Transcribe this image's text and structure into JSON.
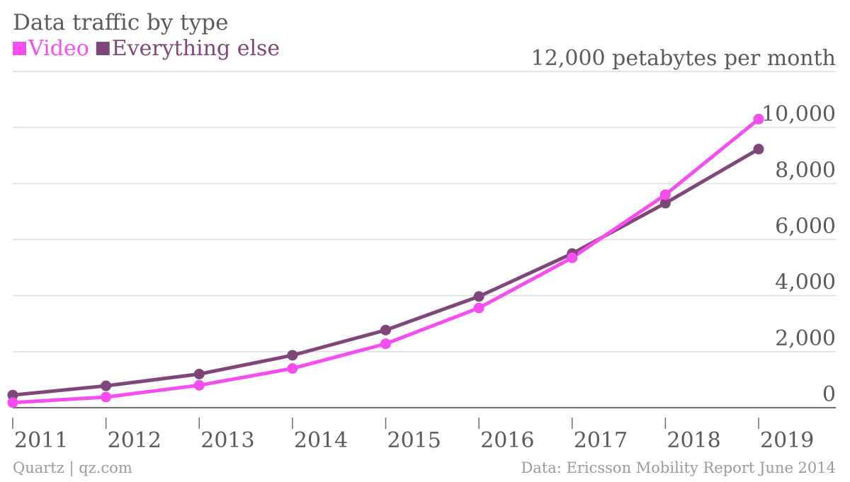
{
  "title": "Data traffic by type",
  "footer": {
    "left": "Quartz | qz.com",
    "right": "Data: Ericsson Mobility Report June 2014"
  },
  "colors": {
    "video": "#f54df0",
    "everything_else": "#7f4679",
    "text": "#5a5a5a",
    "grid": "#dcdcdc",
    "axis": "#6a6a6a"
  },
  "chart_data": {
    "type": "line",
    "title": "Data traffic by type",
    "xlabel": "",
    "ylabel": "",
    "x": [
      "2011",
      "2012",
      "2013",
      "2014",
      "2015",
      "2016",
      "2017",
      "2018",
      "2019"
    ],
    "y_ticks": [
      {
        "value": 0,
        "label": "0"
      },
      {
        "value": 2000,
        "label": "2,000"
      },
      {
        "value": 4000,
        "label": "4,000"
      },
      {
        "value": 6000,
        "label": "6,000"
      },
      {
        "value": 8000,
        "label": "8,000"
      },
      {
        "value": 10000,
        "label": "10,000"
      },
      {
        "value": 12000,
        "label": "12,000 petabytes per month"
      }
    ],
    "ylim": [
      0,
      12000
    ],
    "grid": true,
    "legend_position": "top-left",
    "series": [
      {
        "name": "Video",
        "color": "#f54df0",
        "values": [
          180,
          380,
          800,
          1400,
          2280,
          3560,
          5350,
          7600,
          10300
        ]
      },
      {
        "name": "Everything else",
        "color": "#7f4679",
        "values": [
          450,
          780,
          1200,
          1870,
          2770,
          3970,
          5500,
          7300,
          9230
        ]
      }
    ]
  }
}
